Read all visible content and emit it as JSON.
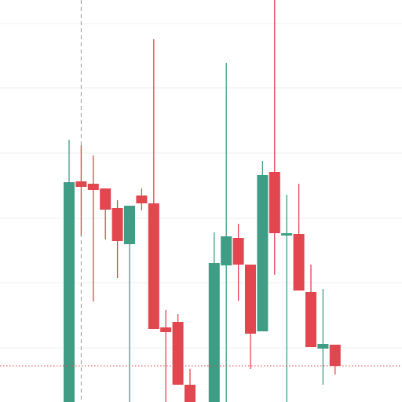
{
  "chart_data": {
    "type": "candlestick",
    "categories": [
      null,
      null,
      null,
      null,
      null,
      null,
      null,
      null,
      null,
      null,
      null,
      null,
      null,
      null,
      null,
      null,
      null,
      null,
      null,
      null,
      null,
      null,
      null
    ],
    "open": [
      0,
      281,
      278,
      272,
      247,
      201,
      263,
      253,
      95,
      102,
      22,
      null,
      0,
      174,
      209,
      175,
      90,
      293,
      212,
      214,
      140,
      68,
      73
    ],
    "close": [
      280,
      274,
      270,
      245,
      205,
      250,
      253,
      93,
      89,
      22,
      0,
      null,
      177,
      211,
      175,
      87,
      289,
      215,
      215,
      142,
      70,
      74,
      46
    ],
    "high": [
      334,
      327,
      314,
      272,
      257,
      250,
      272,
      462,
      117,
      112,
      42,
      null,
      216,
      432,
      227,
      175,
      307,
      512,
      264,
      278,
      175,
      144,
      73
    ],
    "low": [
      0,
      212,
      128,
      207,
      158,
      0,
      244,
      93,
      0,
      22,
      0,
      null,
      0,
      0,
      129,
      42,
      90,
      162,
      0,
      142,
      70,
      22,
      35
    ],
    "up_color": "#3f9d85",
    "down_color": "#e2464f",
    "ylim": [
      0,
      512
    ],
    "yticks": [
      482,
      400,
      317,
      234,
      152,
      69
    ],
    "grid": true,
    "crosshair_index": 1,
    "last_price": 46
  }
}
